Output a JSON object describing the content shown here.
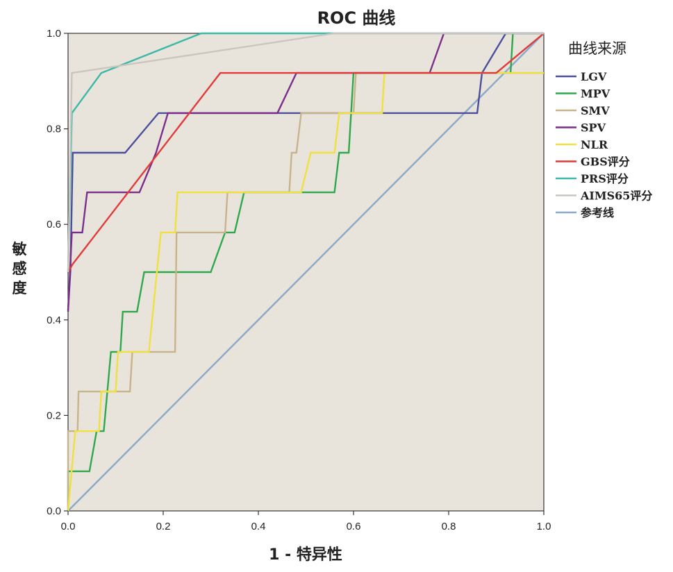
{
  "chart_data": {
    "type": "line",
    "title": "ROC 曲线",
    "xlabel": "1 - 特异性",
    "ylabel": "敏感度",
    "xlim": [
      0,
      1
    ],
    "ylim": [
      0,
      1
    ],
    "x_ticks": [
      "0.0",
      "0.2",
      "0.4",
      "0.6",
      "0.8",
      "1.0"
    ],
    "y_ticks": [
      "0.0",
      "0.2",
      "0.4",
      "0.6",
      "0.8",
      "1.0"
    ],
    "grid": false,
    "legend_title": "曲线来源",
    "legend_position": "right",
    "plot_background": "#e8e4dc",
    "series": [
      {
        "name": "LGV",
        "color": "#4a4f9c",
        "points": [
          [
            0,
            0.42
          ],
          [
            0.005,
            0.5
          ],
          [
            0.01,
            0.75
          ],
          [
            0.12,
            0.75
          ],
          [
            0.19,
            0.833
          ],
          [
            0.86,
            0.833
          ],
          [
            0.87,
            0.917
          ],
          [
            0.92,
            1.0
          ],
          [
            1.0,
            1.0
          ]
        ]
      },
      {
        "name": "MPV",
        "color": "#2ea84a",
        "points": [
          [
            0,
            0
          ],
          [
            0,
            0.083
          ],
          [
            0.045,
            0.083
          ],
          [
            0.06,
            0.167
          ],
          [
            0.075,
            0.167
          ],
          [
            0.09,
            0.333
          ],
          [
            0.11,
            0.333
          ],
          [
            0.115,
            0.417
          ],
          [
            0.145,
            0.417
          ],
          [
            0.16,
            0.5
          ],
          [
            0.3,
            0.5
          ],
          [
            0.33,
            0.583
          ],
          [
            0.35,
            0.583
          ],
          [
            0.37,
            0.667
          ],
          [
            0.56,
            0.667
          ],
          [
            0.57,
            0.75
          ],
          [
            0.59,
            0.75
          ],
          [
            0.6,
            0.917
          ],
          [
            0.93,
            0.917
          ],
          [
            0.935,
            1.0
          ],
          [
            1.0,
            1.0
          ]
        ]
      },
      {
        "name": "SMV",
        "color": "#c8b48a",
        "points": [
          [
            0,
            0
          ],
          [
            0,
            0.167
          ],
          [
            0.02,
            0.167
          ],
          [
            0.022,
            0.25
          ],
          [
            0.13,
            0.25
          ],
          [
            0.135,
            0.333
          ],
          [
            0.225,
            0.333
          ],
          [
            0.228,
            0.583
          ],
          [
            0.33,
            0.583
          ],
          [
            0.335,
            0.667
          ],
          [
            0.465,
            0.667
          ],
          [
            0.47,
            0.75
          ],
          [
            0.48,
            0.75
          ],
          [
            0.49,
            0.833
          ],
          [
            0.6,
            0.833
          ],
          [
            0.605,
            0.917
          ],
          [
            1.0,
            0.917
          ]
        ]
      },
      {
        "name": "SPV",
        "color": "#7a2e8a",
        "points": [
          [
            0,
            0.417
          ],
          [
            0.008,
            0.583
          ],
          [
            0.03,
            0.583
          ],
          [
            0.04,
            0.667
          ],
          [
            0.15,
            0.667
          ],
          [
            0.185,
            0.75
          ],
          [
            0.21,
            0.833
          ],
          [
            0.44,
            0.833
          ],
          [
            0.48,
            0.917
          ],
          [
            0.76,
            0.917
          ],
          [
            0.79,
            1.0
          ],
          [
            1.0,
            1.0
          ]
        ]
      },
      {
        "name": "NLR",
        "color": "#f0e040",
        "points": [
          [
            0,
            0
          ],
          [
            0.015,
            0.167
          ],
          [
            0.065,
            0.167
          ],
          [
            0.07,
            0.25
          ],
          [
            0.1,
            0.25
          ],
          [
            0.105,
            0.333
          ],
          [
            0.17,
            0.333
          ],
          [
            0.195,
            0.583
          ],
          [
            0.225,
            0.583
          ],
          [
            0.23,
            0.667
          ],
          [
            0.49,
            0.667
          ],
          [
            0.51,
            0.75
          ],
          [
            0.56,
            0.75
          ],
          [
            0.57,
            0.833
          ],
          [
            0.66,
            0.833
          ],
          [
            0.665,
            0.917
          ],
          [
            1.0,
            0.917
          ]
        ]
      },
      {
        "name": "GBS评分",
        "color": "#e03a3a",
        "points": [
          [
            0,
            0.5
          ],
          [
            0.01,
            0.517
          ],
          [
            0.32,
            0.917
          ],
          [
            0.9,
            0.917
          ],
          [
            1.0,
            1.0
          ]
        ]
      },
      {
        "name": "PRS评分",
        "color": "#3ab8a8",
        "points": [
          [
            0,
            0.5
          ],
          [
            0.008,
            0.833
          ],
          [
            0.07,
            0.917
          ],
          [
            0.28,
            1.0
          ],
          [
            1.0,
            1.0
          ]
        ]
      },
      {
        "name": "AIMS65评分",
        "color": "#cbc5c0",
        "points": [
          [
            0,
            0.5
          ],
          [
            0.008,
            0.917
          ],
          [
            0.56,
            1.0
          ],
          [
            1.0,
            1.0
          ]
        ]
      },
      {
        "name": "参考线",
        "color": "#8aa8c8",
        "points": [
          [
            0,
            0
          ],
          [
            1,
            1
          ]
        ]
      }
    ]
  }
}
